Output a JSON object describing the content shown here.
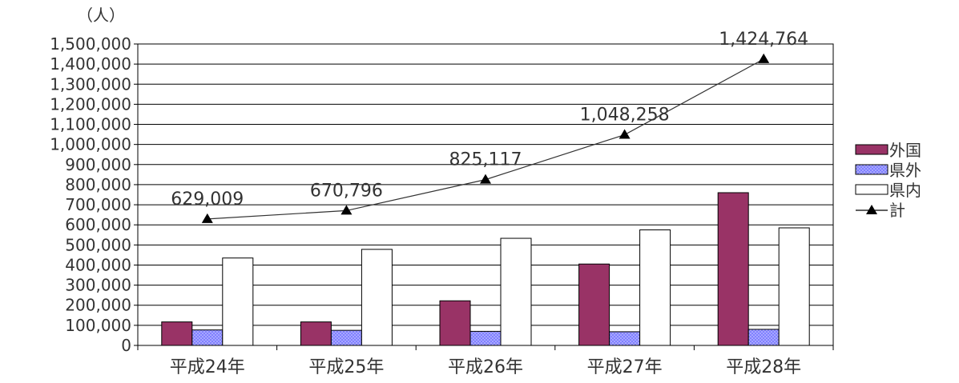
{
  "chart_data": {
    "type": "bar",
    "unit_label": "（人）",
    "categories": [
      "平成24年",
      "平成25年",
      "平成26年",
      "平成27年",
      "平成28年"
    ],
    "ylim": [
      0,
      1500000
    ],
    "yticks": [
      {
        "value": 0,
        "label": "0"
      },
      {
        "value": 100000,
        "label": "100,000"
      },
      {
        "value": 200000,
        "label": "200,000"
      },
      {
        "value": 300000,
        "label": "300,000"
      },
      {
        "value": 400000,
        "label": "400,000"
      },
      {
        "value": 500000,
        "label": "500,000"
      },
      {
        "value": 600000,
        "label": "600,000"
      },
      {
        "value": 700000,
        "label": "700,000"
      },
      {
        "value": 800000,
        "label": "800,000"
      },
      {
        "value": 900000,
        "label": "900,000"
      },
      {
        "value": 1000000,
        "label": "1,000,000"
      },
      {
        "value": 1100000,
        "label": "1,100,000"
      },
      {
        "value": 1200000,
        "label": "1,200,000"
      },
      {
        "value": 1300000,
        "label": "1,300,000"
      },
      {
        "value": 1400000,
        "label": "1,400,000"
      },
      {
        "value": 1500000,
        "label": "1,500,000"
      }
    ],
    "grid": true,
    "legend_position": "right",
    "series": [
      {
        "name": "外国",
        "kind": "bar",
        "color": "#993366",
        "values": [
          117000,
          117000,
          222000,
          405000,
          760000
        ]
      },
      {
        "name": "県外",
        "kind": "bar",
        "color": "#8080ff",
        "pattern": "dotted",
        "values": [
          77000,
          75000,
          70000,
          68000,
          80000
        ]
      },
      {
        "name": "県内",
        "kind": "bar",
        "color": "#ffffff",
        "values": [
          435000,
          478000,
          533000,
          575000,
          585000
        ]
      },
      {
        "name": "計",
        "kind": "line",
        "color": "#000000",
        "marker": "triangle",
        "values": [
          629009,
          670796,
          825117,
          1048258,
          1424764
        ]
      }
    ],
    "data_labels": [
      "629,009",
      "670,796",
      "825,117",
      "1,048,258",
      "1,424,764"
    ]
  }
}
